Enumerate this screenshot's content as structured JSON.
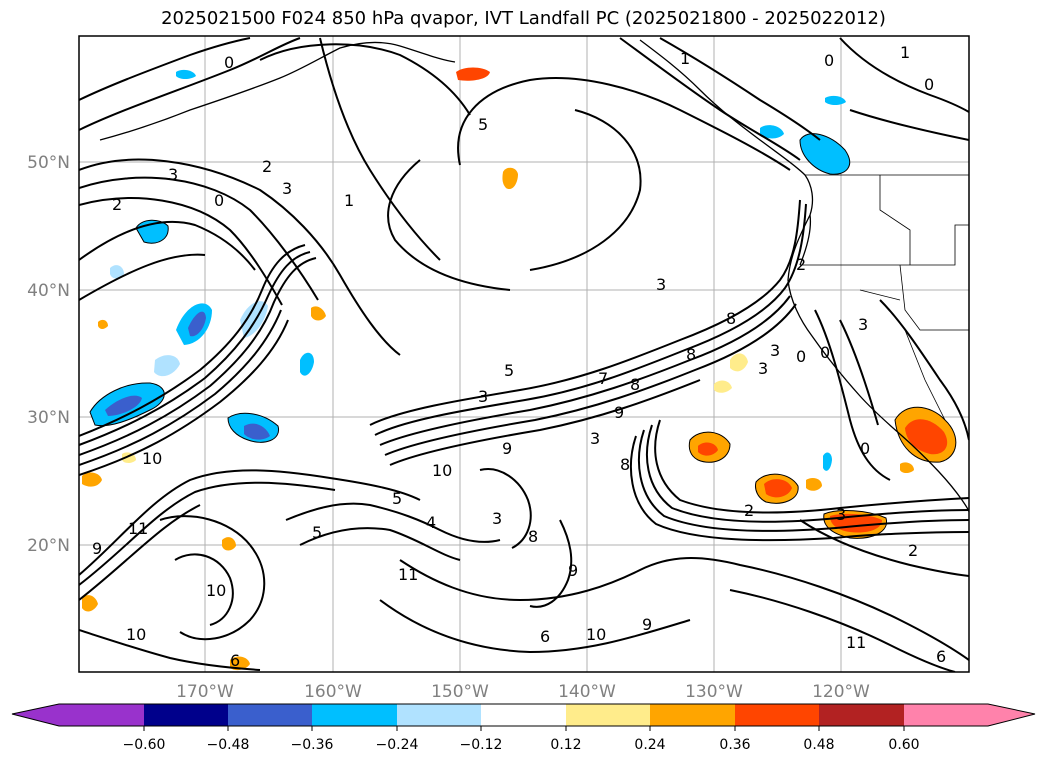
{
  "title": "2025021500 F024 850 hPa qvapor, IVT Landfall PC (2025021800 - 2025022012)",
  "lat_labels": [
    "50°N",
    "40°N",
    "30°N",
    "20°N"
  ],
  "lon_labels": [
    "170°W",
    "160°W",
    "150°W",
    "140°W",
    "130°W",
    "120°W"
  ],
  "colorbar": {
    "tick_labels": [
      "−0.60",
      "−0.48",
      "−0.36",
      "−0.24",
      "−0.12",
      "0.12",
      "0.24",
      "0.36",
      "0.48",
      "0.60"
    ],
    "colors": [
      "#9932cc",
      "#00008b",
      "#3a5fcd",
      "#00bfff",
      "#b0e2ff",
      "#ffffff",
      "#ffec8b",
      "#ffa500",
      "#ff4500",
      "#b22222",
      "#ff82ab"
    ]
  },
  "contour_labels": [
    "0",
    "2",
    "3",
    "1",
    "0",
    "2",
    "3",
    "1",
    "5",
    "1",
    "0",
    "0",
    "2",
    "3",
    "3",
    "8",
    "8",
    "5",
    "8",
    "3",
    "9",
    "3",
    "10",
    "10",
    "11",
    "9",
    "5",
    "5",
    "4",
    "3",
    "8",
    "9",
    "11",
    "10",
    "10",
    "11",
    "6",
    "9",
    "10",
    "9",
    "6",
    "2",
    "2",
    "3",
    "0",
    "0",
    "8",
    "0",
    "3",
    "6",
    "3",
    "7"
  ]
}
